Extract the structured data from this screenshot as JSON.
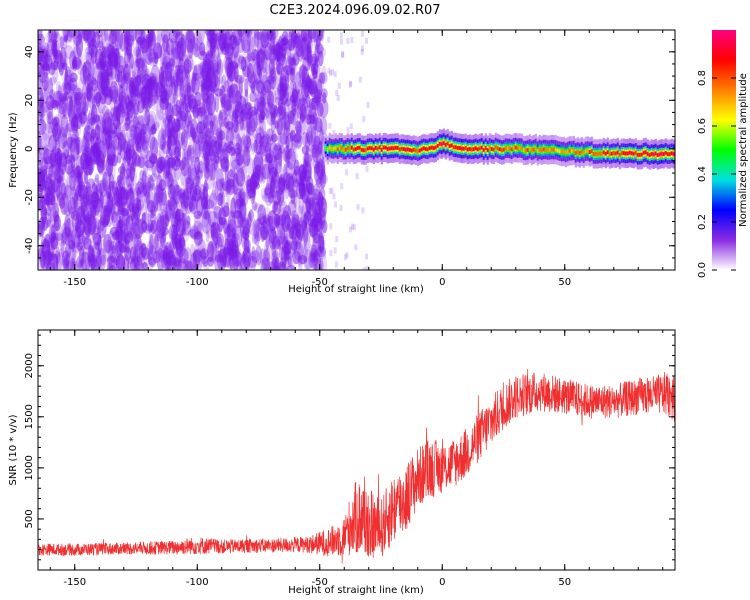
{
  "title": "C2E3.2024.096.09.02.R07",
  "colors": {
    "snr_line": "#f03030",
    "noise": "#7a1ae8"
  },
  "chart_data": [
    {
      "type": "heatmap",
      "xlabel": "Height of straight line (km)",
      "ylabel": "Frequency (Hz)",
      "xlim": [
        -165,
        95
      ],
      "ylim": [
        -50,
        49
      ],
      "xticks": [
        -150,
        -100,
        -50,
        0,
        50
      ],
      "xtick_labels": [
        "-150",
        "-100",
        "-50",
        "0",
        "50"
      ],
      "yticks": [
        -40,
        -20,
        0,
        20,
        40
      ],
      "ytick_labels": [
        "-40",
        "-20",
        "0",
        "20",
        "40"
      ],
      "noise_region_x": [
        -165,
        -48
      ],
      "signal_band": {
        "x": [
          -48,
          -40,
          -30,
          -20,
          -10,
          0,
          10,
          20,
          30,
          50,
          70,
          95
        ],
        "center_freq": [
          0,
          0,
          0,
          0,
          -1,
          2,
          0,
          0,
          0,
          -1,
          -2,
          -2
        ],
        "peak_amplitude": [
          0.6,
          0.85,
          0.95,
          1.0,
          0.9,
          1.0,
          0.95,
          0.85,
          0.8,
          0.75,
          0.9,
          1.0
        ]
      },
      "colorbar": {
        "label": "Normalized spectral amplitude",
        "range": [
          0,
          1
        ],
        "ticks": [
          0.0,
          0.2,
          0.4,
          0.6,
          0.8
        ],
        "tick_labels": [
          "0.0",
          "0.2",
          "0.4",
          "0.6",
          "0.8"
        ],
        "colors": [
          "#ffffff",
          "#8a2be2",
          "#0000ff",
          "#00e0e0",
          "#00ff00",
          "#ffff00",
          "#ff8000",
          "#ff0000",
          "#ff0080"
        ]
      }
    },
    {
      "type": "line",
      "xlabel": "Height of straight line (km)",
      "ylabel": "SNR (10 * v/v)",
      "xlim": [
        -165,
        95
      ],
      "ylim": [
        0,
        2350
      ],
      "xticks": [
        -150,
        -100,
        -50,
        0,
        50
      ],
      "xtick_labels": [
        "-150",
        "-100",
        "-50",
        "0",
        "50"
      ],
      "yticks": [
        500,
        1000,
        1500,
        2000
      ],
      "ytick_labels": [
        "500",
        "1000",
        "1500",
        "2000"
      ],
      "series": [
        {
          "x": [
            -165,
            -150,
            -130,
            -110,
            -100,
            -90,
            -70,
            -55,
            -50,
            -45,
            -40,
            -36,
            -33,
            -30,
            -25,
            -20,
            -15,
            -10,
            -5,
            0,
            5,
            10,
            15,
            20,
            25,
            30,
            40,
            50,
            60,
            70,
            80,
            90,
            95
          ],
          "y": [
            200,
            200,
            210,
            220,
            240,
            230,
            240,
            250,
            260,
            280,
            330,
            500,
            520,
            450,
            400,
            600,
            700,
            900,
            1000,
            1000,
            1050,
            1150,
            1300,
            1450,
            1600,
            1700,
            1750,
            1700,
            1650,
            1650,
            1700,
            1720,
            1750
          ],
          "spread": [
            60,
            60,
            60,
            70,
            90,
            70,
            70,
            80,
            120,
            150,
            200,
            350,
            400,
            350,
            300,
            350,
            350,
            300,
            300,
            250,
            250,
            250,
            250,
            250,
            230,
            220,
            200,
            180,
            170,
            170,
            180,
            200,
            300
          ]
        }
      ]
    }
  ]
}
